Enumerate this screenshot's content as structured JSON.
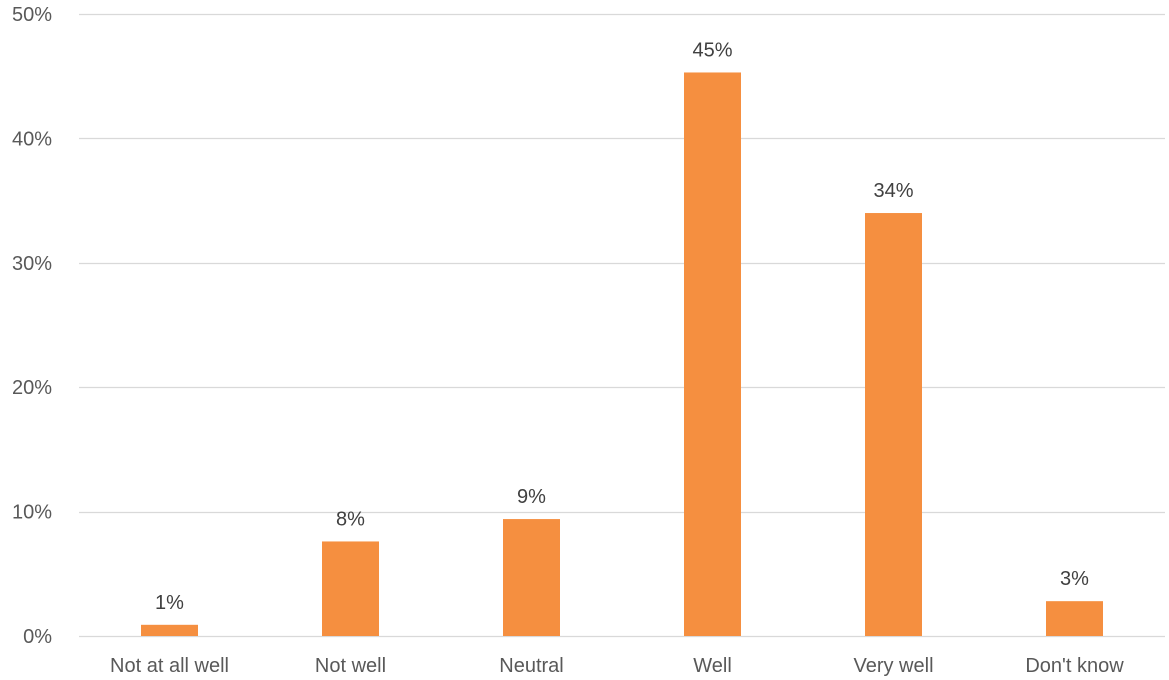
{
  "chart_data": {
    "type": "bar",
    "title": "",
    "xlabel": "",
    "ylabel": "",
    "categories": [
      "Not at all well",
      "Not well",
      "Neutral",
      "Well",
      "Very well",
      "Don't know"
    ],
    "values": [
      0.9,
      7.6,
      9.4,
      45.3,
      34.0,
      2.8
    ],
    "data_labels": [
      "1%",
      "8%",
      "9%",
      "45%",
      "34%",
      "3%"
    ],
    "ylim": [
      0,
      50
    ],
    "yticks": [
      0,
      10,
      20,
      30,
      40,
      50
    ],
    "ytick_labels": [
      "0%",
      "10%",
      "20%",
      "30%",
      "40%",
      "50%"
    ],
    "grid": true,
    "legend": "none",
    "colors": {
      "bar": "#F58F40",
      "grid": "#D9D9D9",
      "axis_text": "#595959",
      "label_text": "#404040"
    }
  }
}
